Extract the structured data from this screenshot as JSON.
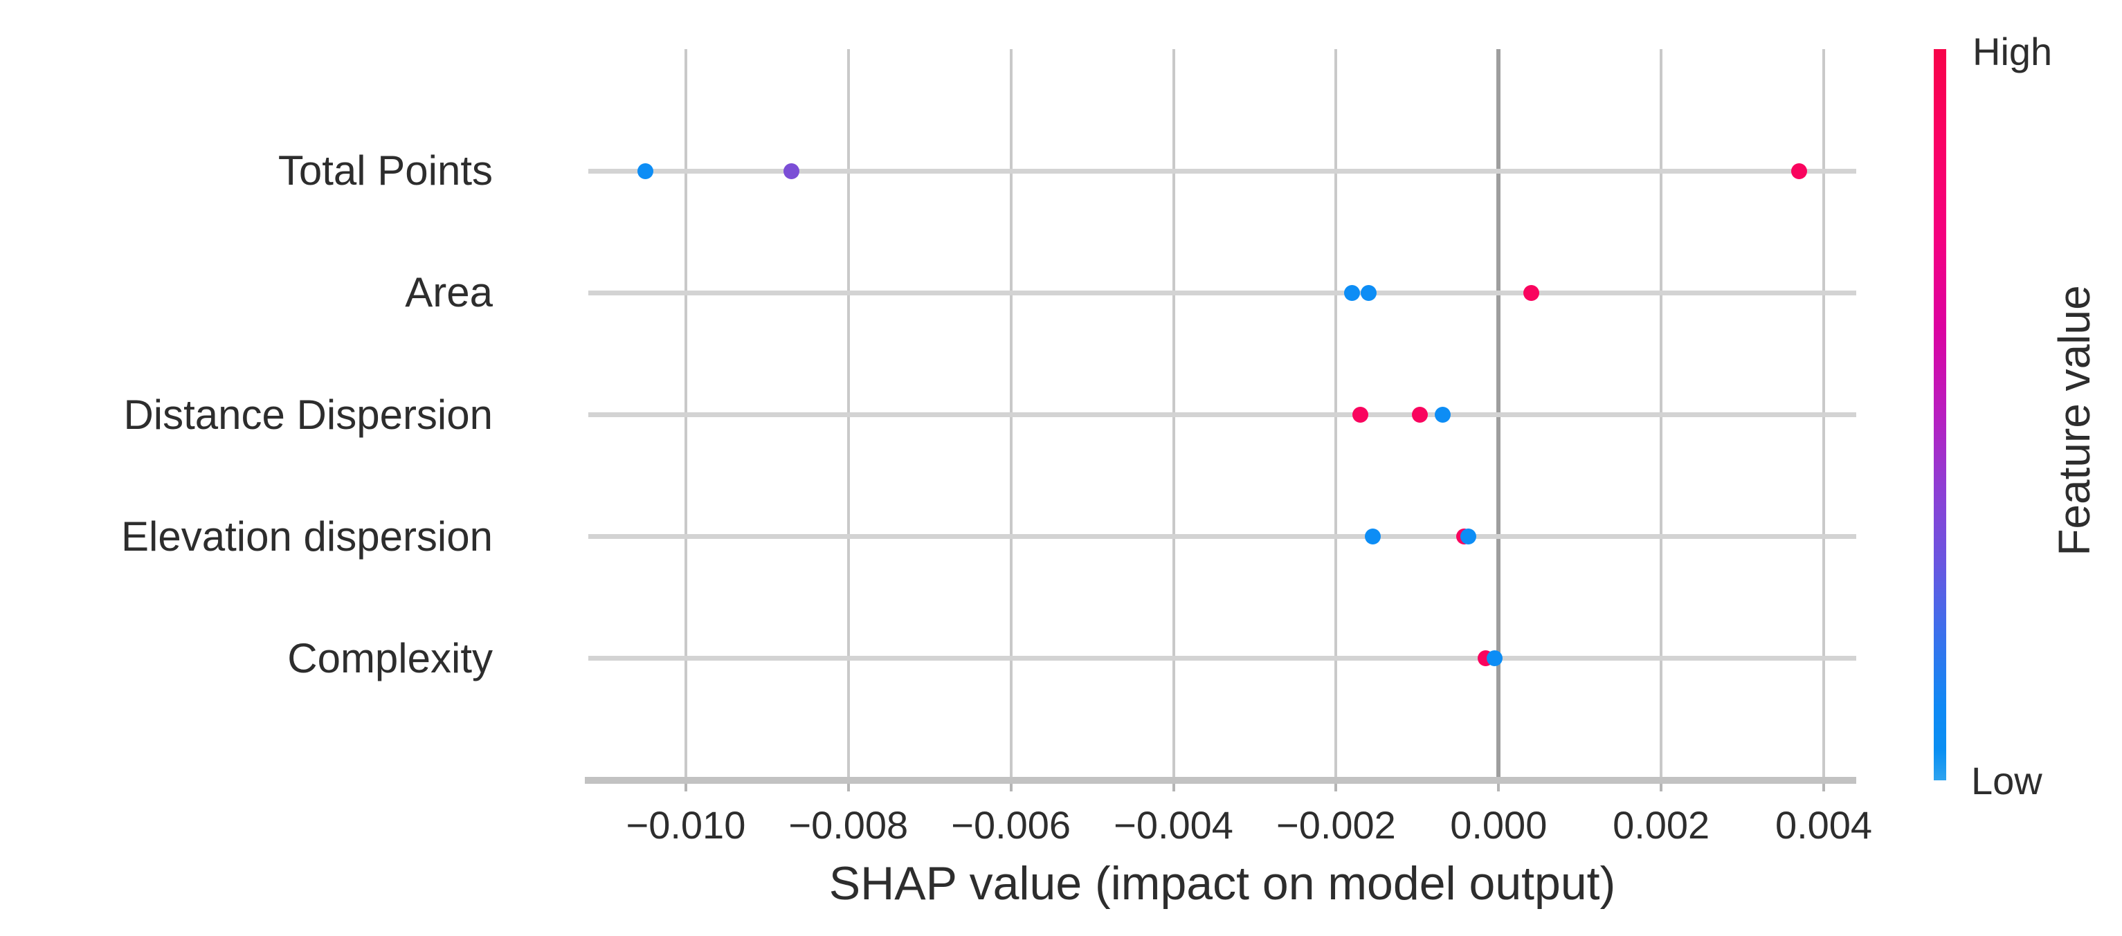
{
  "chart_data": {
    "type": "scatter",
    "variant": "shap-summary-beeswarm",
    "xlabel": "SHAP value (impact on model output)",
    "xlim": [
      -0.0112,
      0.0044
    ],
    "x_ticks": [
      {
        "value": -0.01,
        "label": "−0.010"
      },
      {
        "value": -0.008,
        "label": "−0.008"
      },
      {
        "value": -0.006,
        "label": "−0.006"
      },
      {
        "value": -0.004,
        "label": "−0.004"
      },
      {
        "value": -0.002,
        "label": "−0.002"
      },
      {
        "value": 0.0,
        "label": "0.000"
      },
      {
        "value": 0.002,
        "label": "0.002"
      },
      {
        "value": 0.004,
        "label": "0.004"
      }
    ],
    "grid": true,
    "zero_line": true,
    "legend_position": "right-colorbar",
    "features": [
      {
        "name": "Total Points",
        "points": [
          {
            "shap": -0.0105,
            "feature_value": "low"
          },
          {
            "shap": -0.0087,
            "feature_value": "mid"
          },
          {
            "shap": 0.0037,
            "feature_value": "high"
          }
        ]
      },
      {
        "name": "Area",
        "points": [
          {
            "shap": -0.0018,
            "feature_value": "low"
          },
          {
            "shap": -0.0016,
            "feature_value": "low"
          },
          {
            "shap": 0.0004,
            "feature_value": "high"
          }
        ]
      },
      {
        "name": "Distance Dispersion",
        "points": [
          {
            "shap": -0.0017,
            "feature_value": "high"
          },
          {
            "shap": -0.00097,
            "feature_value": "high"
          },
          {
            "shap": -0.00069,
            "feature_value": "low"
          }
        ]
      },
      {
        "name": "Elevation dispersion",
        "points": [
          {
            "shap": -0.00155,
            "feature_value": "low"
          },
          {
            "shap": -0.00042,
            "feature_value": "high"
          },
          {
            "shap": -0.00037,
            "feature_value": "low"
          }
        ]
      },
      {
        "name": "Complexity",
        "points": [
          {
            "shap": -0.00016,
            "feature_value": "high"
          },
          {
            "shap": -5e-05,
            "feature_value": "low"
          }
        ]
      }
    ],
    "colorbar": {
      "title": "Feature value",
      "high_label": "High",
      "low_label": "Low"
    }
  },
  "colors": {
    "high": "#f9045e",
    "mid": "#7b4ed6",
    "low": "#0d8df5",
    "background": "#ffffff",
    "gridline": "#c9c9c9",
    "zero_line": "#9e9e9e",
    "row_line": "#d3d3d3",
    "axis_line": "#c2c2c2",
    "text": "#2d2d2d"
  }
}
